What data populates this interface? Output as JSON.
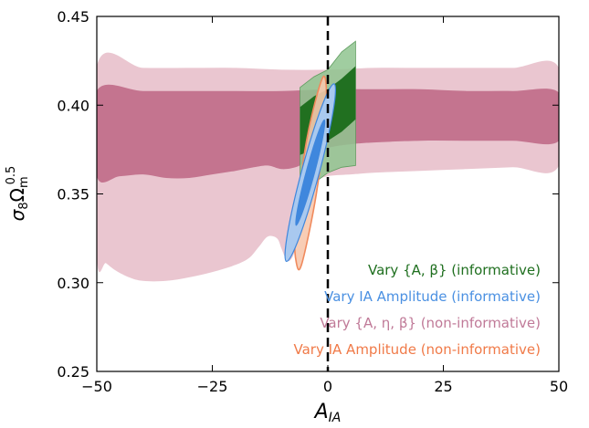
{
  "chart_data": {
    "type": "contour",
    "xlabel_main": "A",
    "xlabel_sub": "IA",
    "ylabel_main": "σ",
    "ylabel_sub8": "8",
    "ylabel_omega": "Ω",
    "ylabel_sub": "m",
    "ylabel_sup": "0.5",
    "xlim": [
      -50,
      50
    ],
    "ylim": [
      0.25,
      0.45
    ],
    "xticks": [
      -50,
      -25,
      0,
      25,
      50
    ],
    "xtick_labels": [
      "−50",
      "−25",
      "0",
      "25",
      "50"
    ],
    "yticks": [
      0.25,
      0.3,
      0.35,
      0.4,
      0.45
    ],
    "ytick_labels": [
      "0.25",
      "0.30",
      "0.35",
      "0.40",
      "0.45"
    ],
    "reference_line_x": 0,
    "legend_position": "lower-right",
    "series": [
      {
        "name": "Vary {A, η, β} (non-informative)",
        "color_inner": "#c06a87",
        "color_outer": "#e6bcc8",
        "outer": [
          [
            -50,
            0.422
          ],
          [
            -40,
            0.421
          ],
          [
            -30,
            0.421
          ],
          [
            -20,
            0.421
          ],
          [
            -10,
            0.42
          ],
          [
            0,
            0.42
          ],
          [
            10,
            0.421
          ],
          [
            20,
            0.421
          ],
          [
            30,
            0.421
          ],
          [
            40,
            0.421
          ],
          [
            50,
            0.421
          ],
          [
            50,
            0.366
          ],
          [
            40,
            0.365
          ],
          [
            30,
            0.364
          ],
          [
            20,
            0.363
          ],
          [
            10,
            0.362
          ],
          [
            5,
            0.361
          ],
          [
            0,
            0.36
          ],
          [
            -3,
            0.357
          ],
          [
            -5,
            0.352
          ],
          [
            -6,
            0.34
          ],
          [
            -7,
            0.32
          ],
          [
            -8,
            0.313
          ],
          [
            -9,
            0.313
          ],
          [
            -10,
            0.319
          ],
          [
            -11,
            0.325
          ],
          [
            -13,
            0.326
          ],
          [
            -15,
            0.32
          ],
          [
            -17,
            0.314
          ],
          [
            -20,
            0.31
          ],
          [
            -25,
            0.306
          ],
          [
            -30,
            0.303
          ],
          [
            -35,
            0.301
          ],
          [
            -40,
            0.301
          ],
          [
            -43,
            0.303
          ],
          [
            -46,
            0.307
          ],
          [
            -48,
            0.311
          ],
          [
            -50,
            0.315
          ]
        ],
        "inner": [
          [
            -50,
            0.408
          ],
          [
            -40,
            0.408
          ],
          [
            -30,
            0.408
          ],
          [
            -20,
            0.408
          ],
          [
            -10,
            0.408
          ],
          [
            0,
            0.409
          ],
          [
            10,
            0.409
          ],
          [
            20,
            0.409
          ],
          [
            30,
            0.408
          ],
          [
            40,
            0.408
          ],
          [
            50,
            0.407
          ],
          [
            50,
            0.38
          ],
          [
            40,
            0.38
          ],
          [
            30,
            0.38
          ],
          [
            20,
            0.38
          ],
          [
            10,
            0.379
          ],
          [
            5,
            0.378
          ],
          [
            0,
            0.376
          ],
          [
            -3,
            0.373
          ],
          [
            -5,
            0.368
          ],
          [
            -7,
            0.365
          ],
          [
            -10,
            0.364
          ],
          [
            -13,
            0.366
          ],
          [
            -16,
            0.365
          ],
          [
            -20,
            0.363
          ],
          [
            -25,
            0.361
          ],
          [
            -30,
            0.359
          ],
          [
            -35,
            0.359
          ],
          [
            -40,
            0.361
          ],
          [
            -45,
            0.36
          ],
          [
            -50,
            0.36
          ]
        ]
      },
      {
        "name": "Vary {A, β} (informative)",
        "color_inner": "#1a6b1a",
        "color_outer": "#8fc48f",
        "outer": [
          [
            -6,
            0.41
          ],
          [
            -3,
            0.416
          ],
          [
            0,
            0.42
          ],
          [
            3,
            0.43
          ],
          [
            6,
            0.436
          ],
          [
            6,
            0.366
          ],
          [
            3,
            0.365
          ],
          [
            0,
            0.362
          ],
          [
            -3,
            0.356
          ],
          [
            -6,
            0.348
          ]
        ],
        "inner": [
          [
            -6,
            0.399
          ],
          [
            -3,
            0.405
          ],
          [
            0,
            0.409
          ],
          [
            3,
            0.415
          ],
          [
            6,
            0.422
          ],
          [
            6,
            0.392
          ],
          [
            3,
            0.385
          ],
          [
            0,
            0.38
          ],
          [
            -3,
            0.375
          ],
          [
            -6,
            0.372
          ]
        ]
      },
      {
        "name": "Vary IA Amplitude (non-informative)",
        "color_inner": "#f08a5d",
        "color_outer": "#f7c8ad",
        "outer": [
          [
            -1,
            0.416
          ],
          [
            -4.6,
            0.38
          ],
          [
            -7.0,
            0.33
          ],
          [
            -6.8,
            0.311
          ],
          [
            -5.6,
            0.311
          ],
          [
            -2.5,
            0.35
          ],
          [
            -0.4,
            0.395
          ]
        ]
      },
      {
        "name": "Vary IA Amplitude (informative)",
        "color_inner": "#3f87dd",
        "color_outer": "#a9c9ef",
        "center": [
          -3.8,
          0.362
        ],
        "outer_half_span": 0.05,
        "outer_half_width": 1.9,
        "inner_half_span": 0.03,
        "inner_half_width": 1.0
      }
    ]
  }
}
